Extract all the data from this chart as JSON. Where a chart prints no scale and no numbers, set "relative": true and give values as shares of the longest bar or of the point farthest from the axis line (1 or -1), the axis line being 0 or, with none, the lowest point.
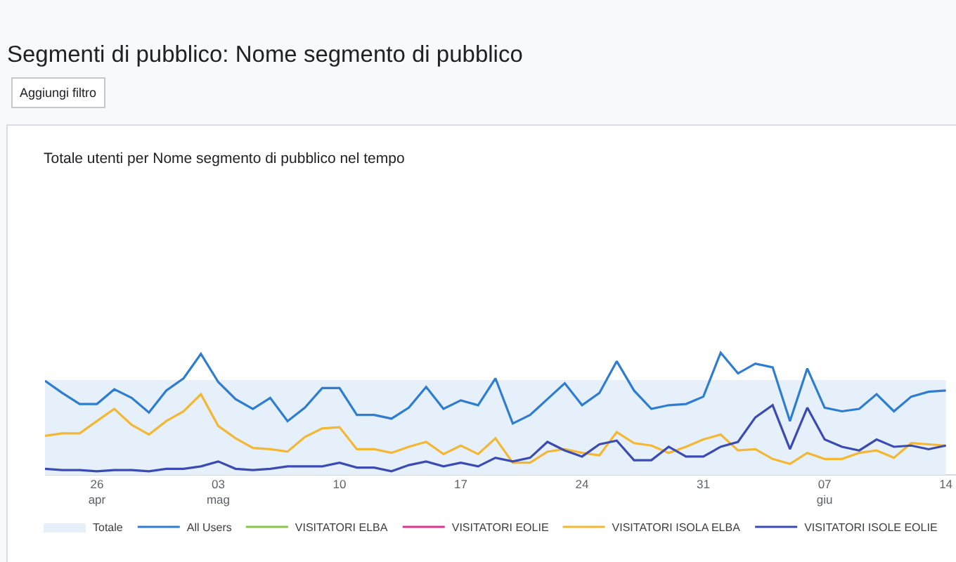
{
  "chart_data": {
    "type": "line",
    "title": "Segmenti di pubblico: Nome segmento di pubblico",
    "subtitle": "Totale utenti per Nome segmento di pubblico nel tempo",
    "annotations": [
      "Aggiungi filtro"
    ],
    "relative": true,
    "legend": "bottom left",
    "x": [
      "--04-23",
      "--04-24",
      "--04-25",
      "--04-26",
      "--04-27",
      "--04-28",
      "--04-29",
      "--04-30",
      "--05-01",
      "--05-02",
      "--05-03",
      "--05-04",
      "--05-05",
      "--05-06",
      "--05-07",
      "--05-08",
      "--05-09",
      "--05-10",
      "--05-11",
      "--05-12",
      "--05-13",
      "--05-14",
      "--05-15",
      "--05-16",
      "--05-17",
      "--05-18",
      "--05-19",
      "--05-20",
      "--05-21",
      "--05-22",
      "--05-23",
      "--05-24",
      "--05-25",
      "--05-26",
      "--05-27",
      "--05-28",
      "--05-29",
      "--05-30",
      "--05-31",
      "--06-01",
      "--06-02",
      "--06-03",
      "--06-04",
      "--06-05",
      "--06-06",
      "--06-07",
      "--06-08",
      "--06-09",
      "--06-10",
      "--06-11",
      "--06-12",
      "--06-13",
      "--06-14"
    ],
    "xlim": [
      "--04-23",
      "--06-14T14:00"
    ],
    "xticks": [
      {
        "value": "--04-26",
        "label": "26\napr"
      },
      {
        "value": "--05-03",
        "label": "03\nmag"
      },
      {
        "value": "--05-10",
        "label": "10"
      },
      {
        "value": "--05-17",
        "label": "17"
      },
      {
        "value": "--05-24",
        "label": "24"
      },
      {
        "value": "--05-31",
        "label": "31"
      },
      {
        "value": "--06-07",
        "label": "07\ngiu"
      },
      {
        "value": "--06-14",
        "label": "14"
      }
    ],
    "series": [
      {
        "name": "Totale",
        "type": "area",
        "color": "#e6f0fa",
        "values": [
          0.77,
          0.77,
          0.77,
          0.77,
          0.77,
          0.77,
          0.77,
          0.77,
          0.77,
          0.77,
          0.77,
          0.77,
          0.77,
          0.77,
          0.77,
          0.77,
          0.77,
          0.77,
          0.77,
          0.77,
          0.77,
          0.77,
          0.77,
          0.77,
          0.77,
          0.77,
          0.77,
          0.77,
          0.77,
          0.77,
          0.77,
          0.77,
          0.77,
          0.77,
          0.77,
          0.77,
          0.77,
          0.77,
          0.77,
          0.77,
          0.77,
          0.77,
          0.77,
          0.77,
          0.77,
          0.77,
          0.77,
          0.77,
          0.77,
          0.77,
          0.77,
          0.77,
          0.77
        ]
      },
      {
        "name": "All Users",
        "color": "#2e7dd1",
        "values": [
          0.77,
          0.67,
          0.58,
          0.58,
          0.7,
          0.63,
          0.51,
          0.69,
          0.79,
          0.99,
          0.76,
          0.62,
          0.54,
          0.63,
          0.44,
          0.55,
          0.71,
          0.71,
          0.49,
          0.49,
          0.46,
          0.55,
          0.72,
          0.54,
          0.61,
          0.57,
          0.79,
          0.42,
          0.49,
          0.62,
          0.75,
          0.57,
          0.67,
          0.93,
          0.69,
          0.54,
          0.57,
          0.58,
          0.64,
          1,
          0.83,
          0.91,
          0.88,
          0.44,
          0.87,
          0.55,
          0.52,
          0.54,
          0.66,
          0.52,
          0.64,
          0.68,
          0.69
        ]
      },
      {
        "name": "VISITATORI ELBA",
        "color": "#8ac44b",
        "values": [
          null,
          null,
          null,
          null,
          null,
          null,
          null,
          null,
          null,
          null,
          null,
          null,
          null,
          null,
          null,
          null,
          null,
          null,
          null,
          null,
          null,
          null,
          null,
          null,
          null,
          null,
          null,
          null,
          null,
          null,
          null,
          null,
          null,
          null,
          null,
          null,
          null,
          null,
          null,
          null,
          null,
          null,
          null,
          null,
          null,
          null,
          null,
          null,
          null,
          null,
          null,
          null,
          null
        ]
      },
      {
        "name": "VISITATORI EOLIE",
        "color": "#e0368f",
        "values": [
          null,
          null,
          null,
          null,
          null,
          null,
          null,
          null,
          null,
          null,
          null,
          null,
          null,
          null,
          null,
          null,
          null,
          null,
          null,
          null,
          null,
          null,
          null,
          null,
          null,
          null,
          null,
          null,
          null,
          null,
          null,
          null,
          null,
          null,
          null,
          null,
          null,
          null,
          null,
          null,
          null,
          null,
          null,
          null,
          null,
          null,
          null,
          null,
          null,
          null,
          null,
          null,
          null
        ]
      },
      {
        "name": "VISITATORI ISOLA ELBA",
        "color": "#f3b733",
        "values": [
          0.32,
          0.34,
          0.34,
          0.44,
          0.54,
          0.41,
          0.33,
          0.44,
          0.52,
          0.66,
          0.4,
          0.3,
          0.22,
          0.21,
          0.19,
          0.31,
          0.38,
          0.39,
          0.21,
          0.21,
          0.18,
          0.23,
          0.27,
          0.17,
          0.24,
          0.17,
          0.3,
          0.1,
          0.1,
          0.19,
          0.21,
          0.18,
          0.16,
          0.35,
          0.26,
          0.24,
          0.18,
          0.23,
          0.29,
          0.33,
          0.2,
          0.21,
          0.13,
          0.09,
          0.18,
          0.13,
          0.13,
          0.18,
          0.2,
          0.14,
          0.26,
          0.25,
          0.24
        ]
      },
      {
        "name": "VISITATORI ISOLE EOLIE",
        "color": "#3b4bb3",
        "values": [
          0.05,
          0.04,
          0.04,
          0.03,
          0.04,
          0.04,
          0.03,
          0.05,
          0.05,
          0.07,
          0.11,
          0.05,
          0.04,
          0.05,
          0.07,
          0.07,
          0.07,
          0.1,
          0.06,
          0.06,
          0.03,
          0.08,
          0.11,
          0.07,
          0.1,
          0.07,
          0.14,
          0.11,
          0.14,
          0.27,
          0.2,
          0.15,
          0.25,
          0.28,
          0.12,
          0.12,
          0.23,
          0.15,
          0.15,
          0.23,
          0.27,
          0.47,
          0.57,
          0.21,
          0.55,
          0.29,
          0.23,
          0.2,
          0.29,
          0.23,
          0.24,
          0.21,
          0.24
        ]
      }
    ]
  }
}
